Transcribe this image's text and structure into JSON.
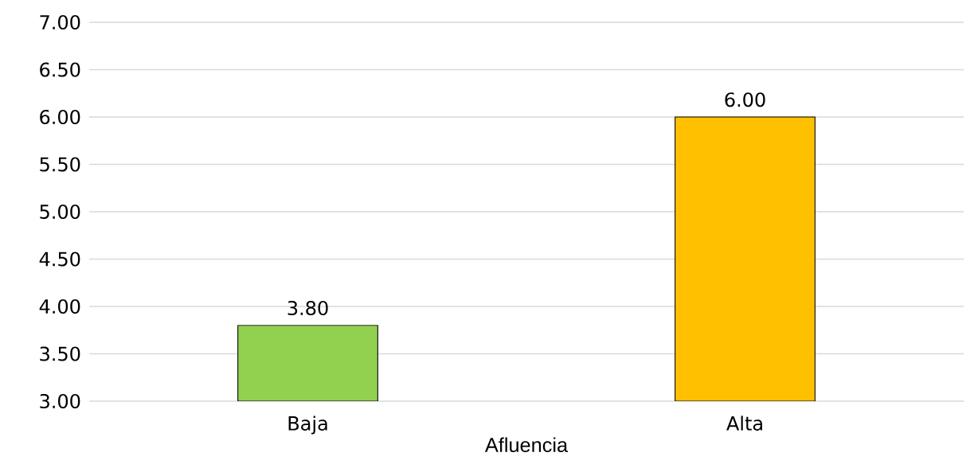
{
  "chart_data": {
    "type": "bar",
    "xlabel": "Afluencia",
    "categories": [
      "Baja",
      "Alta"
    ],
    "values": [
      3.8,
      6.0
    ],
    "colors": [
      "#92d050",
      "#ffc000"
    ],
    "value_labels": [
      "3.80",
      "6.00"
    ],
    "ylim": [
      3,
      7
    ],
    "yticks": [
      {
        "value": 3,
        "label": "3.00"
      },
      {
        "value": 3.5,
        "label": "3.50"
      },
      {
        "value": 4,
        "label": "4.00"
      },
      {
        "value": 4.5,
        "label": "4.50"
      },
      {
        "value": 5,
        "label": "5.00"
      },
      {
        "value": 5.5,
        "label": "5.50"
      },
      {
        "value": 6,
        "label": "6.00"
      },
      {
        "value": 6.5,
        "label": "6.50"
      },
      {
        "value": 7,
        "label": "7.00"
      }
    ],
    "grid": "y"
  }
}
